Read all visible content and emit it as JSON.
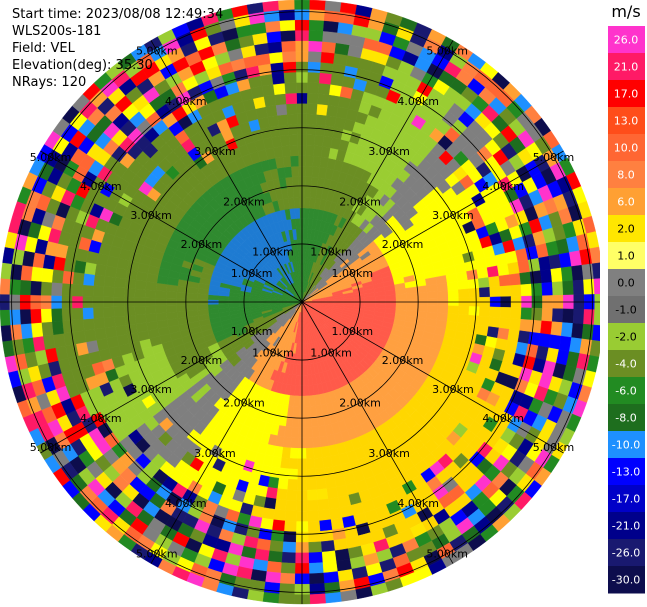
{
  "header": {
    "start_time": "Start time: 2023/08/08 12:49:34",
    "instrument": "WLS200s-181",
    "field": "Field: VEL",
    "elevation": "Elevation(deg): 35.30",
    "nrays": "NRays: 120"
  },
  "chart_data": {
    "type": "heatmap",
    "subtype": "ppi-polar",
    "field": "VEL",
    "unit": "m/s",
    "max_range_km": 5.2,
    "ring_labels": [
      "1.00km",
      "2.00km",
      "3.00km",
      "4.00km",
      "5.00km"
    ],
    "rings_km": [
      1,
      2,
      3,
      4,
      5
    ],
    "nrays": 120,
    "grid": true,
    "colorbar": {
      "label": "m/s",
      "ticks": [
        "26.0",
        "21.0",
        "17.0",
        "13.0",
        "10.0",
        "8.0",
        "6.0",
        "2.0",
        "1.0",
        "0.0",
        "-1.0",
        "-2.0",
        "-4.0",
        "-6.0",
        "-8.0",
        "-10.0",
        "-13.0",
        "-17.0",
        "-21.0",
        "-26.0",
        "-30.0"
      ],
      "colors": [
        "#ff33cc",
        "#ff1a66",
        "#ff0000",
        "#ff4d1a",
        "#ff6633",
        "#ff8040",
        "#ffa033",
        "#ffe600",
        "#ffff66",
        "#808080",
        "#707070",
        "#99cc33",
        "#6b8e23",
        "#228b22",
        "#1e6e1e",
        "#1e90ff",
        "#0000ff",
        "#0000c8",
        "#00008b",
        "#191970",
        "#0d0d4d"
      ]
    },
    "palette": {
      "neg_strong": "#1e7bd2",
      "neg_mid": "#2f8a2f",
      "neg_weak": "#6b8e23",
      "neg_light": "#9acd32",
      "zero": "#7f7f7f",
      "pos_light": "#ffff00",
      "pos_mid": "#ffd700",
      "pos_orange": "#ffa040",
      "pos_salmon": "#ff7f50",
      "pos_red": "#ff5a4a"
    }
  }
}
